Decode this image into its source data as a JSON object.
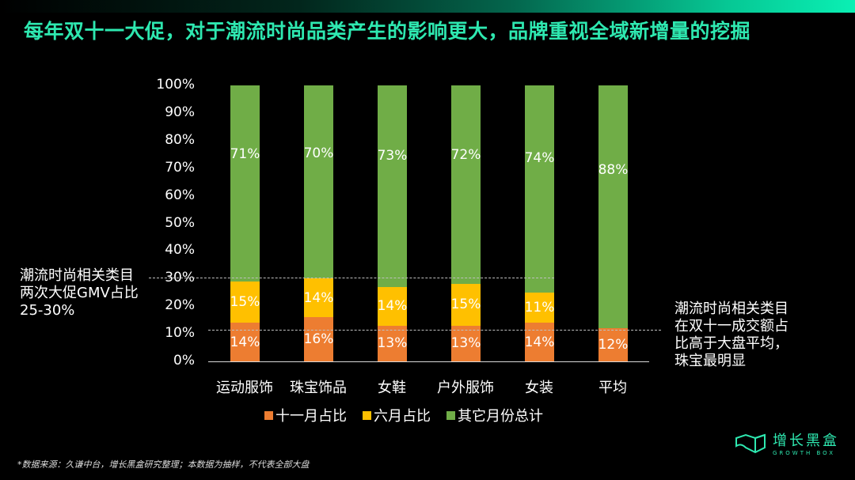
{
  "header": {
    "title": "每年双十一大促，对于潮流时尚品类产生的影响更大，品牌重视全域新增量的挖掘"
  },
  "annotations": {
    "left": [
      "潮流时尚相关类目",
      "两次大促GMV占比",
      "25-30%"
    ],
    "right": [
      "潮流时尚相关类目",
      "在双十一成交额占",
      "比高于大盘平均，",
      "珠宝最明显"
    ]
  },
  "footer": {
    "source": "*数据来源：久谦中台，增长黑盒研究整理；本数据为抽样，不代表全部大盘",
    "logo_cn": "增长黑盒",
    "logo_en": "GROWTH BOX"
  },
  "colors": {
    "double11": "#ed7d31",
    "june": "#ffc000",
    "other": "#70ad47",
    "title": "#2ee8b0"
  },
  "chart_data": {
    "type": "bar",
    "stacked": true,
    "title": "",
    "xlabel": "",
    "ylabel": "",
    "ylim": [
      0,
      100
    ],
    "yticks": [
      "0%",
      "10%",
      "20%",
      "30%",
      "40%",
      "50%",
      "60%",
      "70%",
      "80%",
      "90%",
      "100%"
    ],
    "categories": [
      "运动服饰",
      "珠宝饰品",
      "女鞋",
      "户外服饰",
      "女装",
      "平均"
    ],
    "series": [
      {
        "name": "十一月占比",
        "color": "#ed7d31",
        "values": [
          14,
          16,
          13,
          13,
          14,
          12
        ],
        "labels": [
          "14%",
          "16%",
          "13%",
          "13%",
          "14%",
          "12%"
        ]
      },
      {
        "name": "六月占比",
        "color": "#ffc000",
        "values": [
          15,
          14,
          14,
          15,
          11,
          0
        ],
        "labels": [
          "15%",
          "14%",
          "14%",
          "15%",
          "11%",
          ""
        ]
      },
      {
        "name": "其它月份总计",
        "color": "#70ad47",
        "values": [
          71,
          70,
          73,
          72,
          74,
          88
        ],
        "labels": [
          "71%",
          "70%",
          "73%",
          "72%",
          "74%",
          "88%"
        ]
      }
    ],
    "reference_lines": [
      {
        "y": 30.5,
        "style": "dashed",
        "span": "first five categories"
      },
      {
        "y": 11.5,
        "style": "dashed",
        "span": "all categories"
      }
    ],
    "legend_position": "bottom",
    "grid": false
  }
}
